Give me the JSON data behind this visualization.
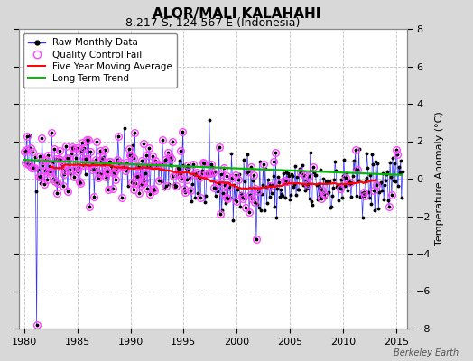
{
  "title": "ALOR/MALI KALAHAHI",
  "subtitle": "8.217 S, 124.567 E (Indonesia)",
  "ylabel": "Temperature Anomaly (°C)",
  "watermark": "Berkeley Earth",
  "xlim": [
    1979.5,
    2016.0
  ],
  "ylim": [
    -8,
    8
  ],
  "yticks": [
    -8,
    -6,
    -4,
    -2,
    0,
    2,
    4,
    6,
    8
  ],
  "xticks": [
    1980,
    1985,
    1990,
    1995,
    2000,
    2005,
    2010,
    2015
  ],
  "background_color": "#d8d8d8",
  "plot_bg_color": "#ffffff",
  "grid_color": "#c0c0c0",
  "raw_line_color": "#3333ff",
  "raw_marker_color": "#000000",
  "qc_fail_color": "#ff44ff",
  "moving_avg_color": "#ff0000",
  "trend_color": "#00bb00",
  "title_fontsize": 11,
  "subtitle_fontsize": 9,
  "legend_fontsize": 7.5,
  "axis_fontsize": 8
}
